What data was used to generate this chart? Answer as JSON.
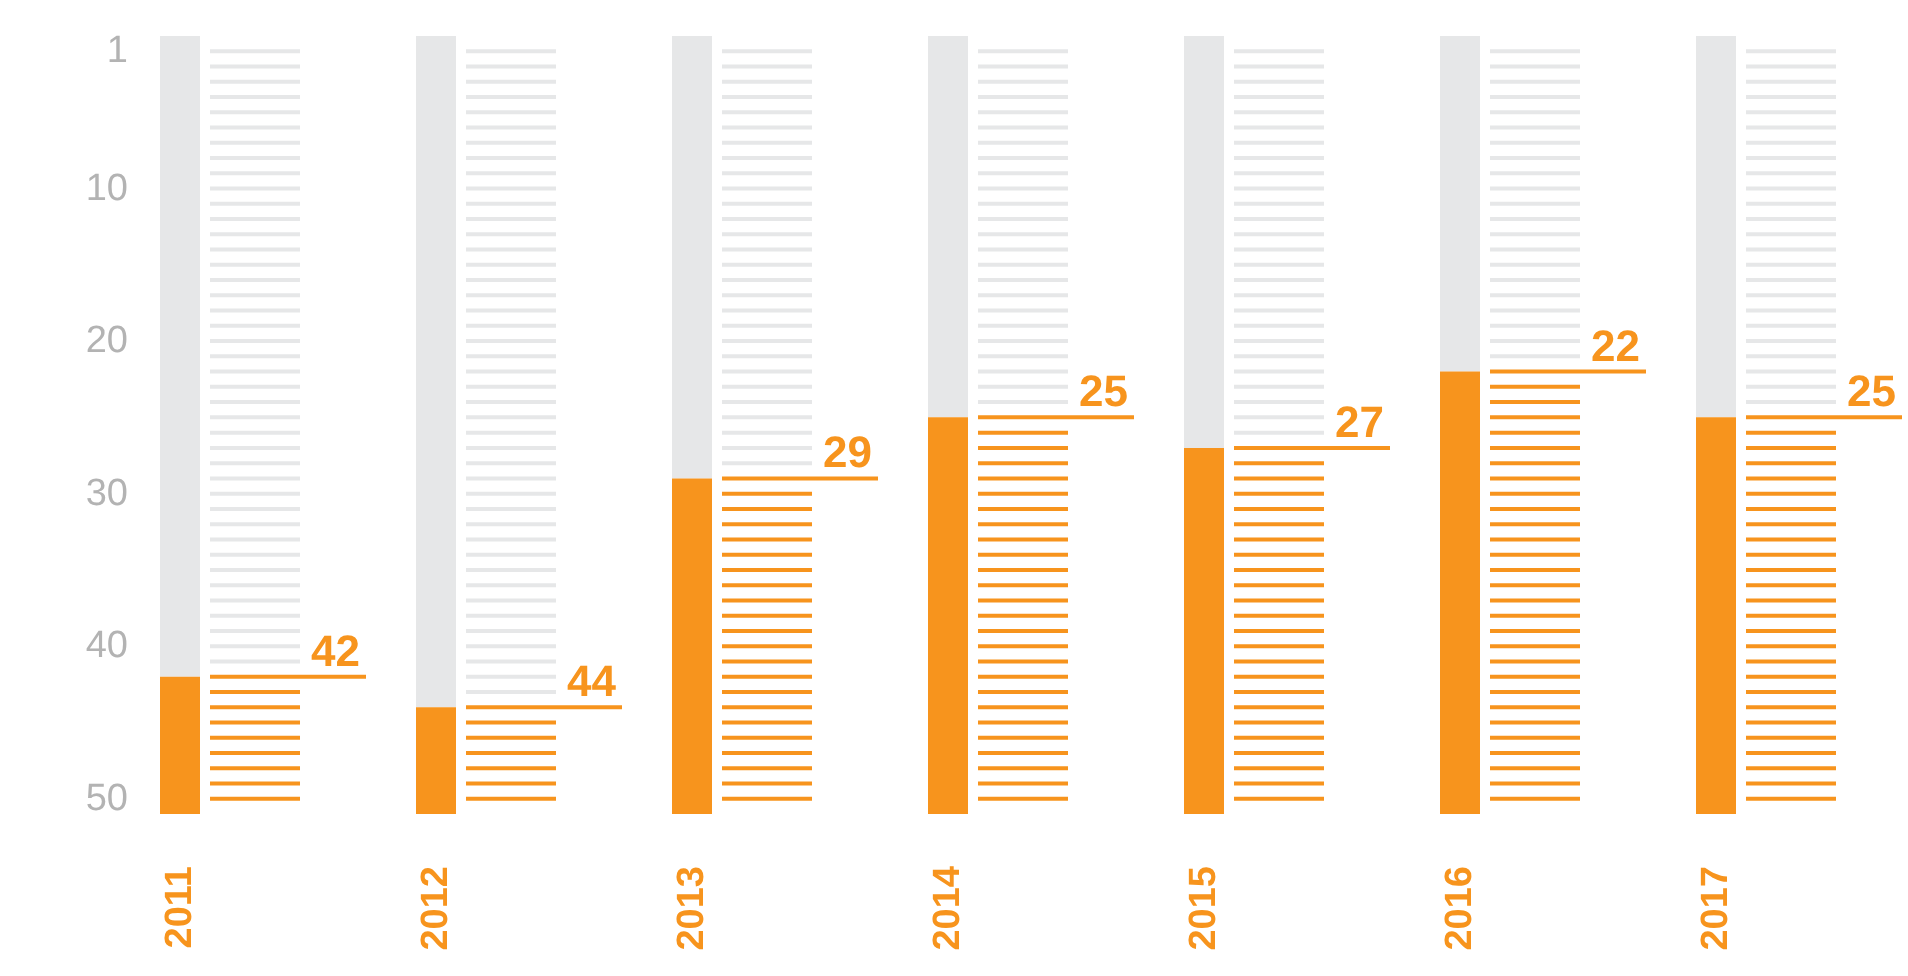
{
  "chart_data": {
    "type": "bar",
    "categories": [
      "2011",
      "2012",
      "2013",
      "2014",
      "2015",
      "2016",
      "2017"
    ],
    "stacked": true,
    "series": [
      {
        "color": "#e6e7e8",
        "values": [
          42,
          44,
          29,
          25,
          27,
          22,
          25
        ],
        "value_labels": [
          "42",
          "44",
          "29",
          "25",
          "27",
          "22",
          "25"
        ]
      },
      {
        "color": "#f7941d",
        "values": [
          9,
          7,
          22,
          26,
          24,
          29,
          26
        ]
      }
    ],
    "ylim": [
      51,
      0
    ],
    "yticks": [
      1,
      10,
      20,
      30,
      40,
      50
    ],
    "grid": false
  }
}
